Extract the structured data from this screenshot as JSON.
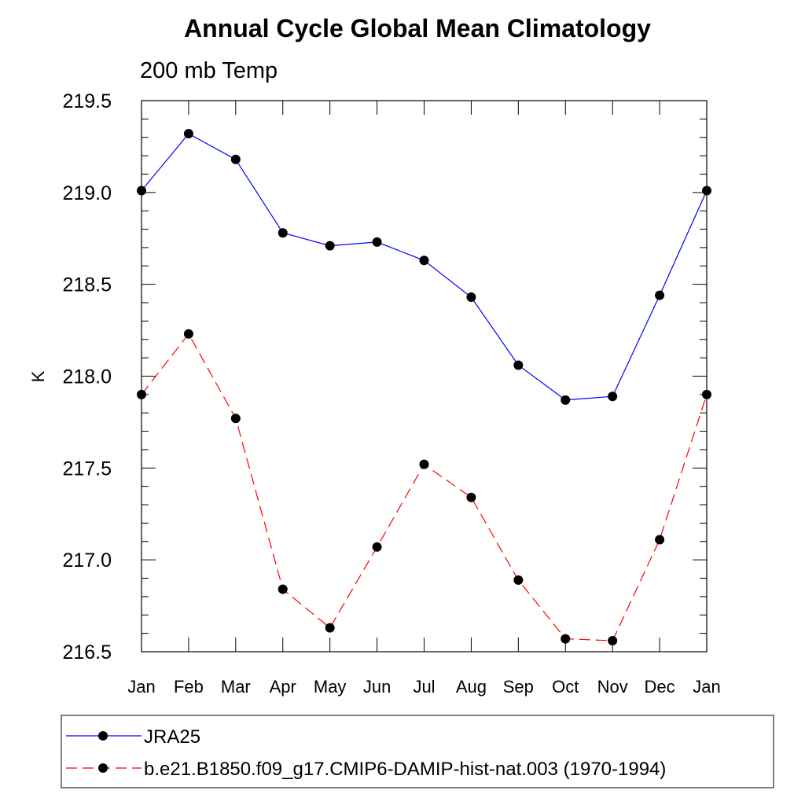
{
  "chart_data": {
    "type": "line",
    "title": "Annual Cycle Global Mean Climatology",
    "subtitle": "200 mb Temp",
    "xlabel": "",
    "ylabel": "K",
    "categories": [
      "Jan",
      "Feb",
      "Mar",
      "Apr",
      "May",
      "Jun",
      "Jul",
      "Aug",
      "Sep",
      "Oct",
      "Nov",
      "Dec",
      "Jan"
    ],
    "ylim": [
      216.5,
      219.5
    ],
    "yticks": [
      "216.5",
      "217.0",
      "217.5",
      "218.0",
      "218.5",
      "219.0",
      "219.5"
    ],
    "grid": false,
    "legend_position": "bottom",
    "series": [
      {
        "name": "JRA25",
        "color": "#0000ff",
        "dash": "solid",
        "marker": "filled-circle",
        "values": [
          219.01,
          219.32,
          219.18,
          218.78,
          218.71,
          218.73,
          218.63,
          218.43,
          218.06,
          217.87,
          217.89,
          218.44,
          219.01
        ]
      },
      {
        "name": "b.e21.B1850.f09_g17.CMIP6-DAMIP-hist-nat.003 (1970-1994)",
        "color": "#ff0000",
        "dash": "dashed",
        "marker": "filled-circle",
        "values": [
          217.9,
          218.23,
          217.77,
          216.84,
          216.63,
          217.07,
          217.52,
          217.34,
          216.89,
          216.57,
          216.56,
          217.11,
          217.9
        ]
      }
    ]
  }
}
